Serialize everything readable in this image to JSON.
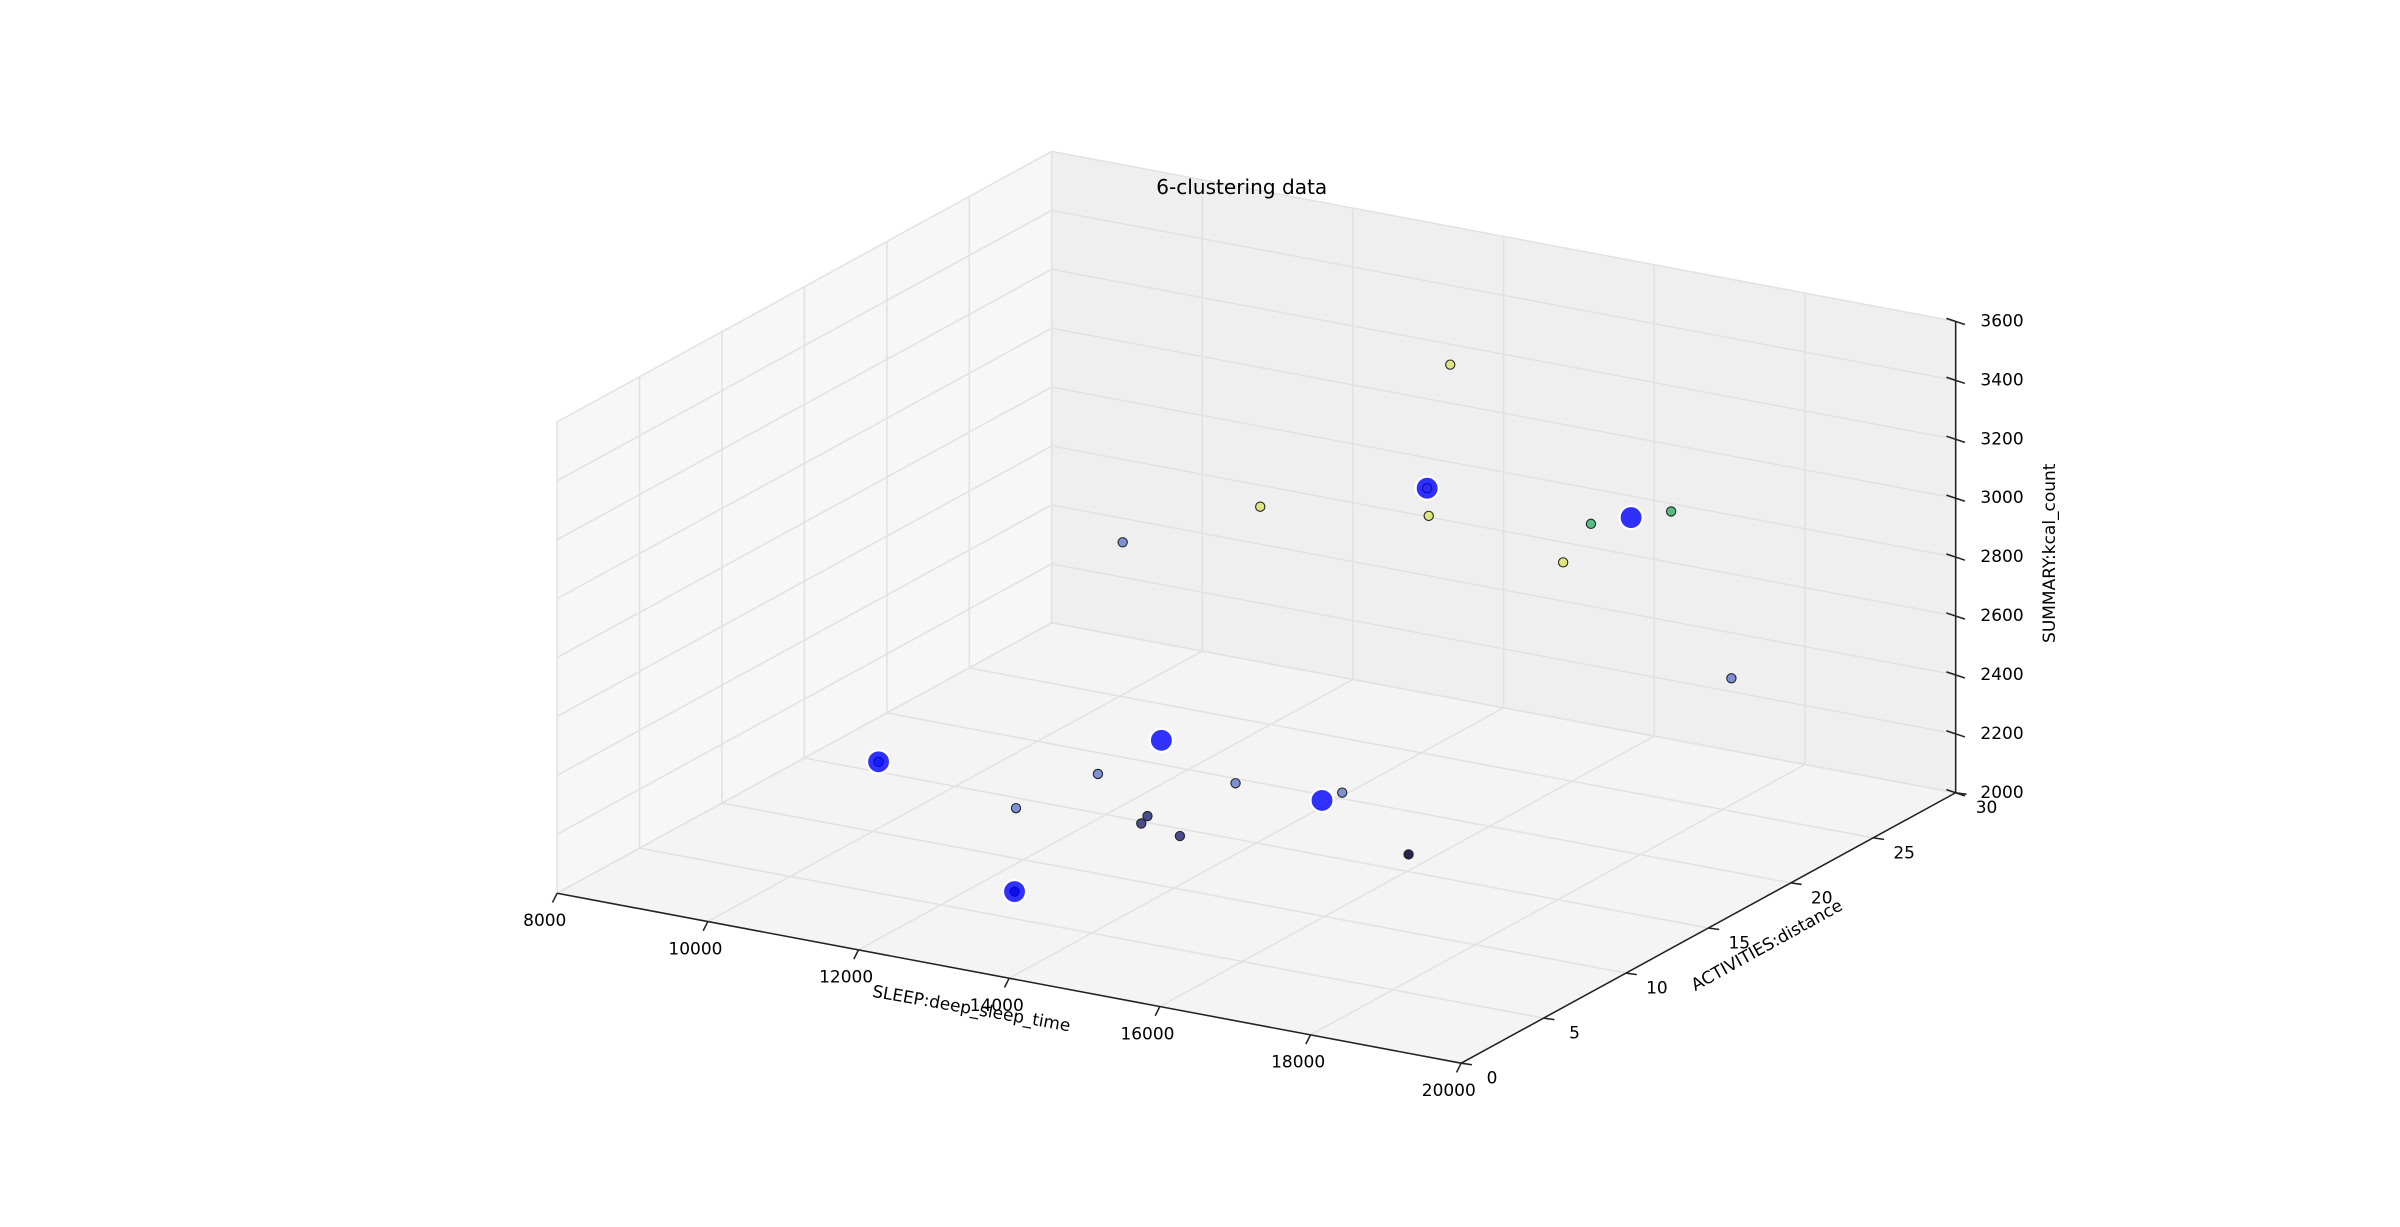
{
  "chart_data": {
    "type": "scatter3d",
    "title": "6-clustering data",
    "x_label": "SLEEP:deep_sleep_time",
    "y_label": "ACTIVITIES:distance",
    "z_label": "SUMMARY:kcal_count",
    "xlim": [
      8000,
      20000
    ],
    "ylim": [
      0,
      30
    ],
    "zlim": [
      2000,
      3600
    ],
    "xticks": [
      8000,
      10000,
      12000,
      14000,
      16000,
      18000,
      20000
    ],
    "yticks": [
      0,
      5,
      10,
      15,
      20,
      25,
      30
    ],
    "zticks": [
      2000,
      2200,
      2400,
      2600,
      2800,
      3000,
      3200,
      3400,
      3600
    ],
    "grid": true,
    "series": [
      {
        "color": "#dde26a",
        "size": 3,
        "x": [
          15479,
          14051,
          15631,
          17415,
          15610
        ],
        "y": [
          20,
          15,
          18,
          18,
          18
        ],
        "z": [
          3542,
          3144,
          3097,
          3025,
          3190
        ]
      },
      {
        "color": "#3cb371",
        "size": 3,
        "x": [
          16909,
          17317
        ],
        "y": [
          22,
          25
        ],
        "z": [
          3009,
          2979
        ]
      },
      {
        "color": "#6a7fd0",
        "size": 3,
        "x": [
          13319,
          18117,
          13428,
          12997,
          14817,
          15795,
          11610
        ],
        "y": [
          10,
          25,
          8,
          5,
          10,
          12,
          3
        ],
        "z": [
          3141,
          2451,
          2421,
          2376,
          2395,
          2349,
          2528
        ]
      },
      {
        "color": "#2a2f7a",
        "size": 3,
        "x": [
          14523,
          14441,
          14954,
          13415
        ],
        "y": [
          6,
          6,
          6,
          3
        ],
        "z": [
          2392,
          2363,
          2345,
          2174
        ]
      },
      {
        "color": "#000033",
        "size": 3,
        "x": [
          17114
        ],
        "y": [
          10
        ],
        "z": [
          2264
        ]
      },
      {
        "color": "#0000ff",
        "size": 7.5,
        "x": [
          11610,
          13415,
          14708,
          15965,
          15610,
          17442
        ],
        "y": [
          3,
          3,
          6,
          10,
          18,
          22
        ],
        "z": [
          2528,
          2174,
          2658,
          2392,
          3190,
          3056
        ]
      }
    ]
  }
}
